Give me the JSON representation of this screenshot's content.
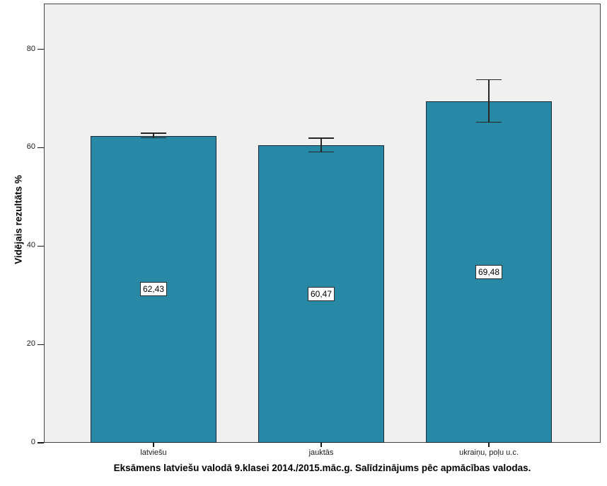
{
  "chart_data": {
    "type": "bar",
    "title": "Eksāmens latviešu valodā 9.klasei 2014./2015.māc.g. Salīdzinājums pēc apmācības valodas.",
    "ylabel": "Vidējais rezultāts %",
    "xlabel": "",
    "categories": [
      "latviešu",
      "jauktās",
      "ukraiņu, poļu u.c."
    ],
    "values": [
      62.43,
      60.47,
      69.48
    ],
    "value_labels": [
      "62,43",
      "60,47",
      "69,48"
    ],
    "error_upper": [
      62.9,
      61.9,
      73.8
    ],
    "error_lower": [
      62.0,
      59.1,
      65.2
    ],
    "yticks": [
      0,
      20,
      40,
      60,
      80
    ],
    "ytick_labels": [
      "0",
      "20",
      "40",
      "60",
      "80"
    ],
    "ylim": [
      0,
      89.3
    ],
    "grid": false,
    "legend": "none",
    "colors": {
      "bar_fill": "#2789A6",
      "bar_border": "#1C2B33",
      "error_bar": "#262626",
      "plot_bg": "#F0F0F0",
      "frame": "#424242",
      "figure_bg": "#FFFFFF",
      "label_box_bg": "#FFFFFF",
      "label_box_border": "#2B2B2B",
      "tick": "#1A1A1A"
    }
  }
}
